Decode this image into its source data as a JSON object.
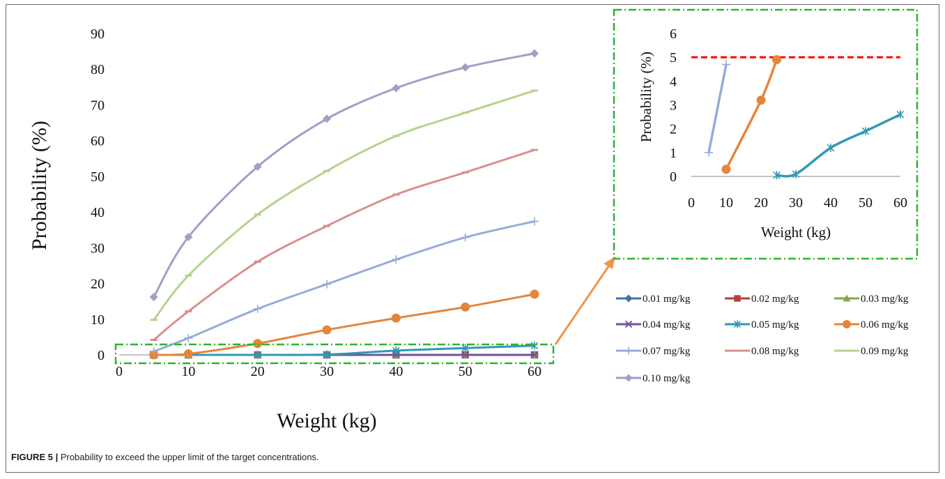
{
  "figure": {
    "caption_label": "FIGURE 5 |",
    "caption_text": "Probability to exceed the upper limit of the target concentrations."
  },
  "colors": {
    "zoom_box": "#2db22d",
    "arrow": "#f0954a",
    "threshold": "#ff0000"
  },
  "chart_data": [
    {
      "type": "line",
      "xlabel": "Weight (kg)",
      "ylabel": "Probability (%)",
      "xlim": [
        0,
        60
      ],
      "ylim": [
        0,
        90
      ],
      "xticks": [
        0,
        10,
        20,
        30,
        40,
        50,
        60
      ],
      "yticks": [
        0,
        10,
        20,
        30,
        40,
        50,
        60,
        70,
        80,
        90
      ],
      "grid": false,
      "legend": "right",
      "x": [
        5,
        10,
        20,
        30,
        40,
        50,
        60
      ],
      "series": [
        {
          "name": "0.01 mg/kg",
          "color": "#3f6fb0",
          "marker": "diamond",
          "values": [
            0,
            0,
            0,
            0,
            0,
            0,
            0
          ]
        },
        {
          "name": "0.02 mg/kg",
          "color": "#b2403c",
          "marker": "square",
          "values": [
            0,
            0,
            0,
            0,
            0,
            0,
            0
          ]
        },
        {
          "name": "0.03 mg/kg",
          "color": "#84a845",
          "marker": "triangle",
          "values": [
            0,
            0,
            0,
            0,
            0,
            0,
            0
          ]
        },
        {
          "name": "0.04 mg/kg",
          "color": "#70529a",
          "marker": "x",
          "values": [
            0,
            0,
            0,
            0,
            0,
            0,
            0
          ]
        },
        {
          "name": "0.05 mg/kg",
          "color": "#2f99b5",
          "marker": "star",
          "values": [
            0,
            0,
            0,
            0.1,
            1.2,
            1.9,
            2.6
          ]
        },
        {
          "name": "0.06 mg/kg",
          "color": "#e5853b",
          "marker": "circle",
          "values": [
            0,
            0.3,
            3.2,
            7.0,
            10.3,
            13.4,
            17.0
          ]
        },
        {
          "name": "0.07 mg/kg",
          "color": "#94add6",
          "marker": "plus",
          "values": [
            1.0,
            4.7,
            12.9,
            19.8,
            26.7,
            32.9,
            37.4
          ]
        },
        {
          "name": "0.08 mg/kg",
          "color": "#d98f8c",
          "marker": "dash",
          "values": [
            4.2,
            12.2,
            26.1,
            36.1,
            44.9,
            51.1,
            57.4
          ]
        },
        {
          "name": "0.09 mg/kg",
          "color": "#b6d38e",
          "marker": "dash",
          "values": [
            9.8,
            22.2,
            39.3,
            51.5,
            61.3,
            67.8,
            74.0
          ]
        },
        {
          "name": "0.10 mg/kg",
          "color": "#a99bc6",
          "marker": "diamond",
          "values": [
            16.2,
            33.0,
            52.7,
            66.1,
            74.7,
            80.5,
            84.4
          ]
        }
      ]
    },
    {
      "type": "line",
      "xlabel": "Weight (kg)",
      "ylabel": "Probability (%)",
      "xlim": [
        0,
        60
      ],
      "ylim": [
        0,
        6
      ],
      "xticks": [
        0,
        10,
        20,
        30,
        40,
        50,
        60
      ],
      "yticks": [
        0,
        1,
        2,
        3,
        4,
        5,
        6
      ],
      "grid": false,
      "threshold": 5,
      "series": [
        {
          "name": "0.07 mg/kg",
          "color": "#94add6",
          "marker": "plus",
          "points": [
            [
              5,
              1.0
            ],
            [
              10,
              4.7
            ]
          ]
        },
        {
          "name": "0.06 mg/kg",
          "color": "#e5853b",
          "marker": "circle",
          "points": [
            [
              10,
              0.3
            ],
            [
              20,
              3.2
            ],
            [
              24.5,
              4.9
            ]
          ]
        },
        {
          "name": "0.05 mg/kg",
          "color": "#2f99b5",
          "marker": "star",
          "points": [
            [
              24.5,
              0.05
            ],
            [
              30,
              0.1
            ],
            [
              40,
              1.2
            ],
            [
              50,
              1.9
            ],
            [
              60,
              2.6
            ]
          ]
        }
      ]
    }
  ]
}
